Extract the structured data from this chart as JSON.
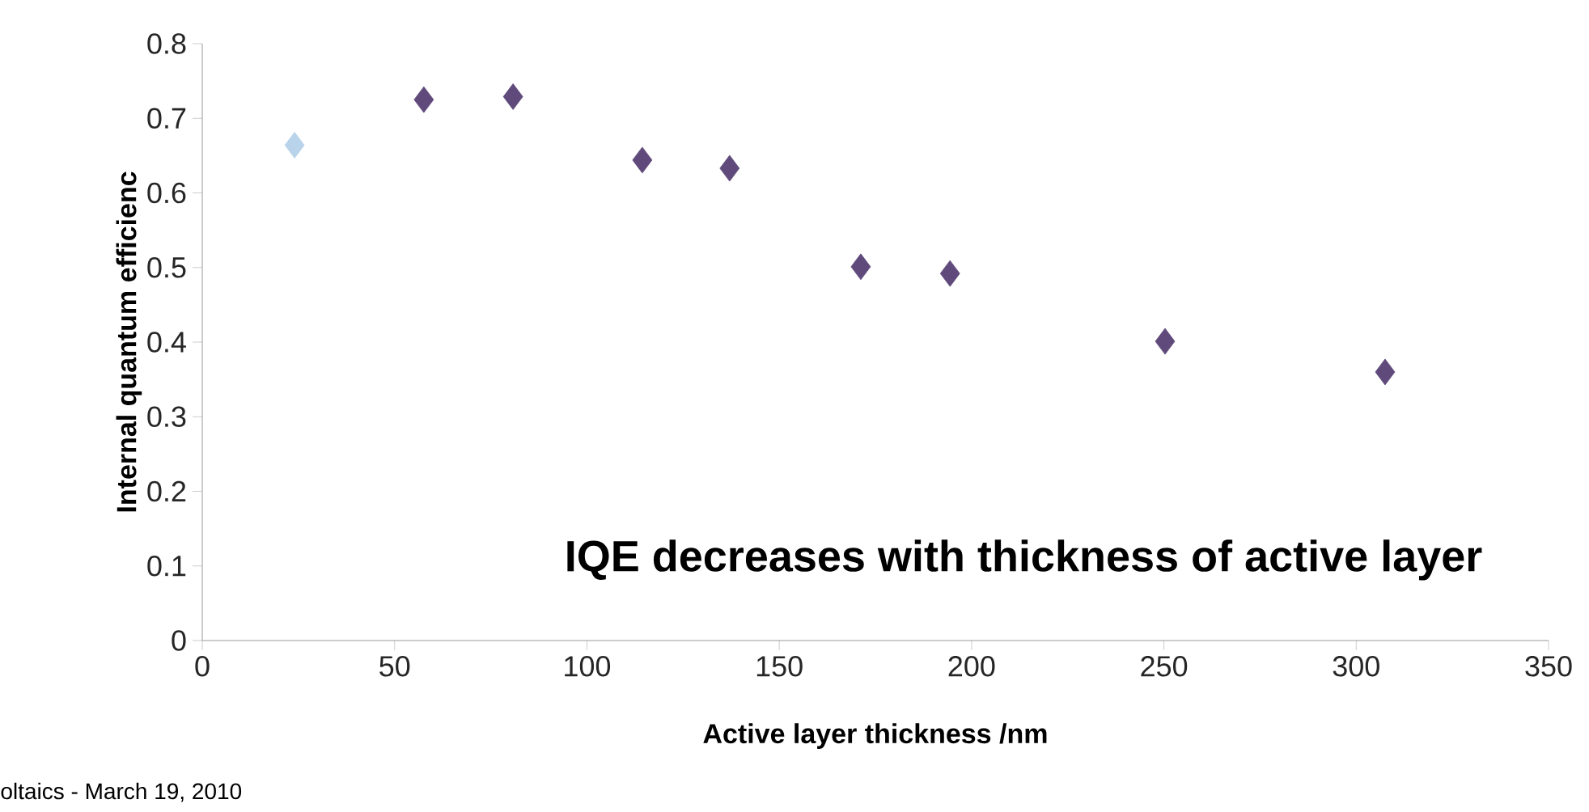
{
  "chart_data": {
    "type": "scatter",
    "xlabel": "Active layer thickness   /nm",
    "ylabel": "Internal quantum efficienc",
    "marker": "diamond",
    "xlim": [
      0,
      350
    ],
    "xticks": [
      0,
      50,
      100,
      150,
      200,
      250,
      300,
      350
    ],
    "ylim": [
      0,
      0.8
    ],
    "yticks": [
      0,
      0.1,
      0.2,
      0.3,
      0.4,
      0.5,
      0.6,
      0.7,
      0.8
    ],
    "annotations": [
      "IQE decreases with thickness of active layer",
      "oltaics - March 19, 2010"
    ],
    "series": [
      {
        "color": "#b9d3ea",
        "x": [
          24
        ],
        "values": [
          0.664
        ]
      },
      {
        "color": "#604a7b",
        "x": [
          57.6,
          80.8,
          114.4,
          137.1,
          171.2,
          194.4,
          250.3,
          307.5
        ],
        "values": [
          0.725,
          0.729,
          0.644,
          0.633,
          0.501,
          0.492,
          0.401,
          0.36
        ]
      }
    ]
  }
}
